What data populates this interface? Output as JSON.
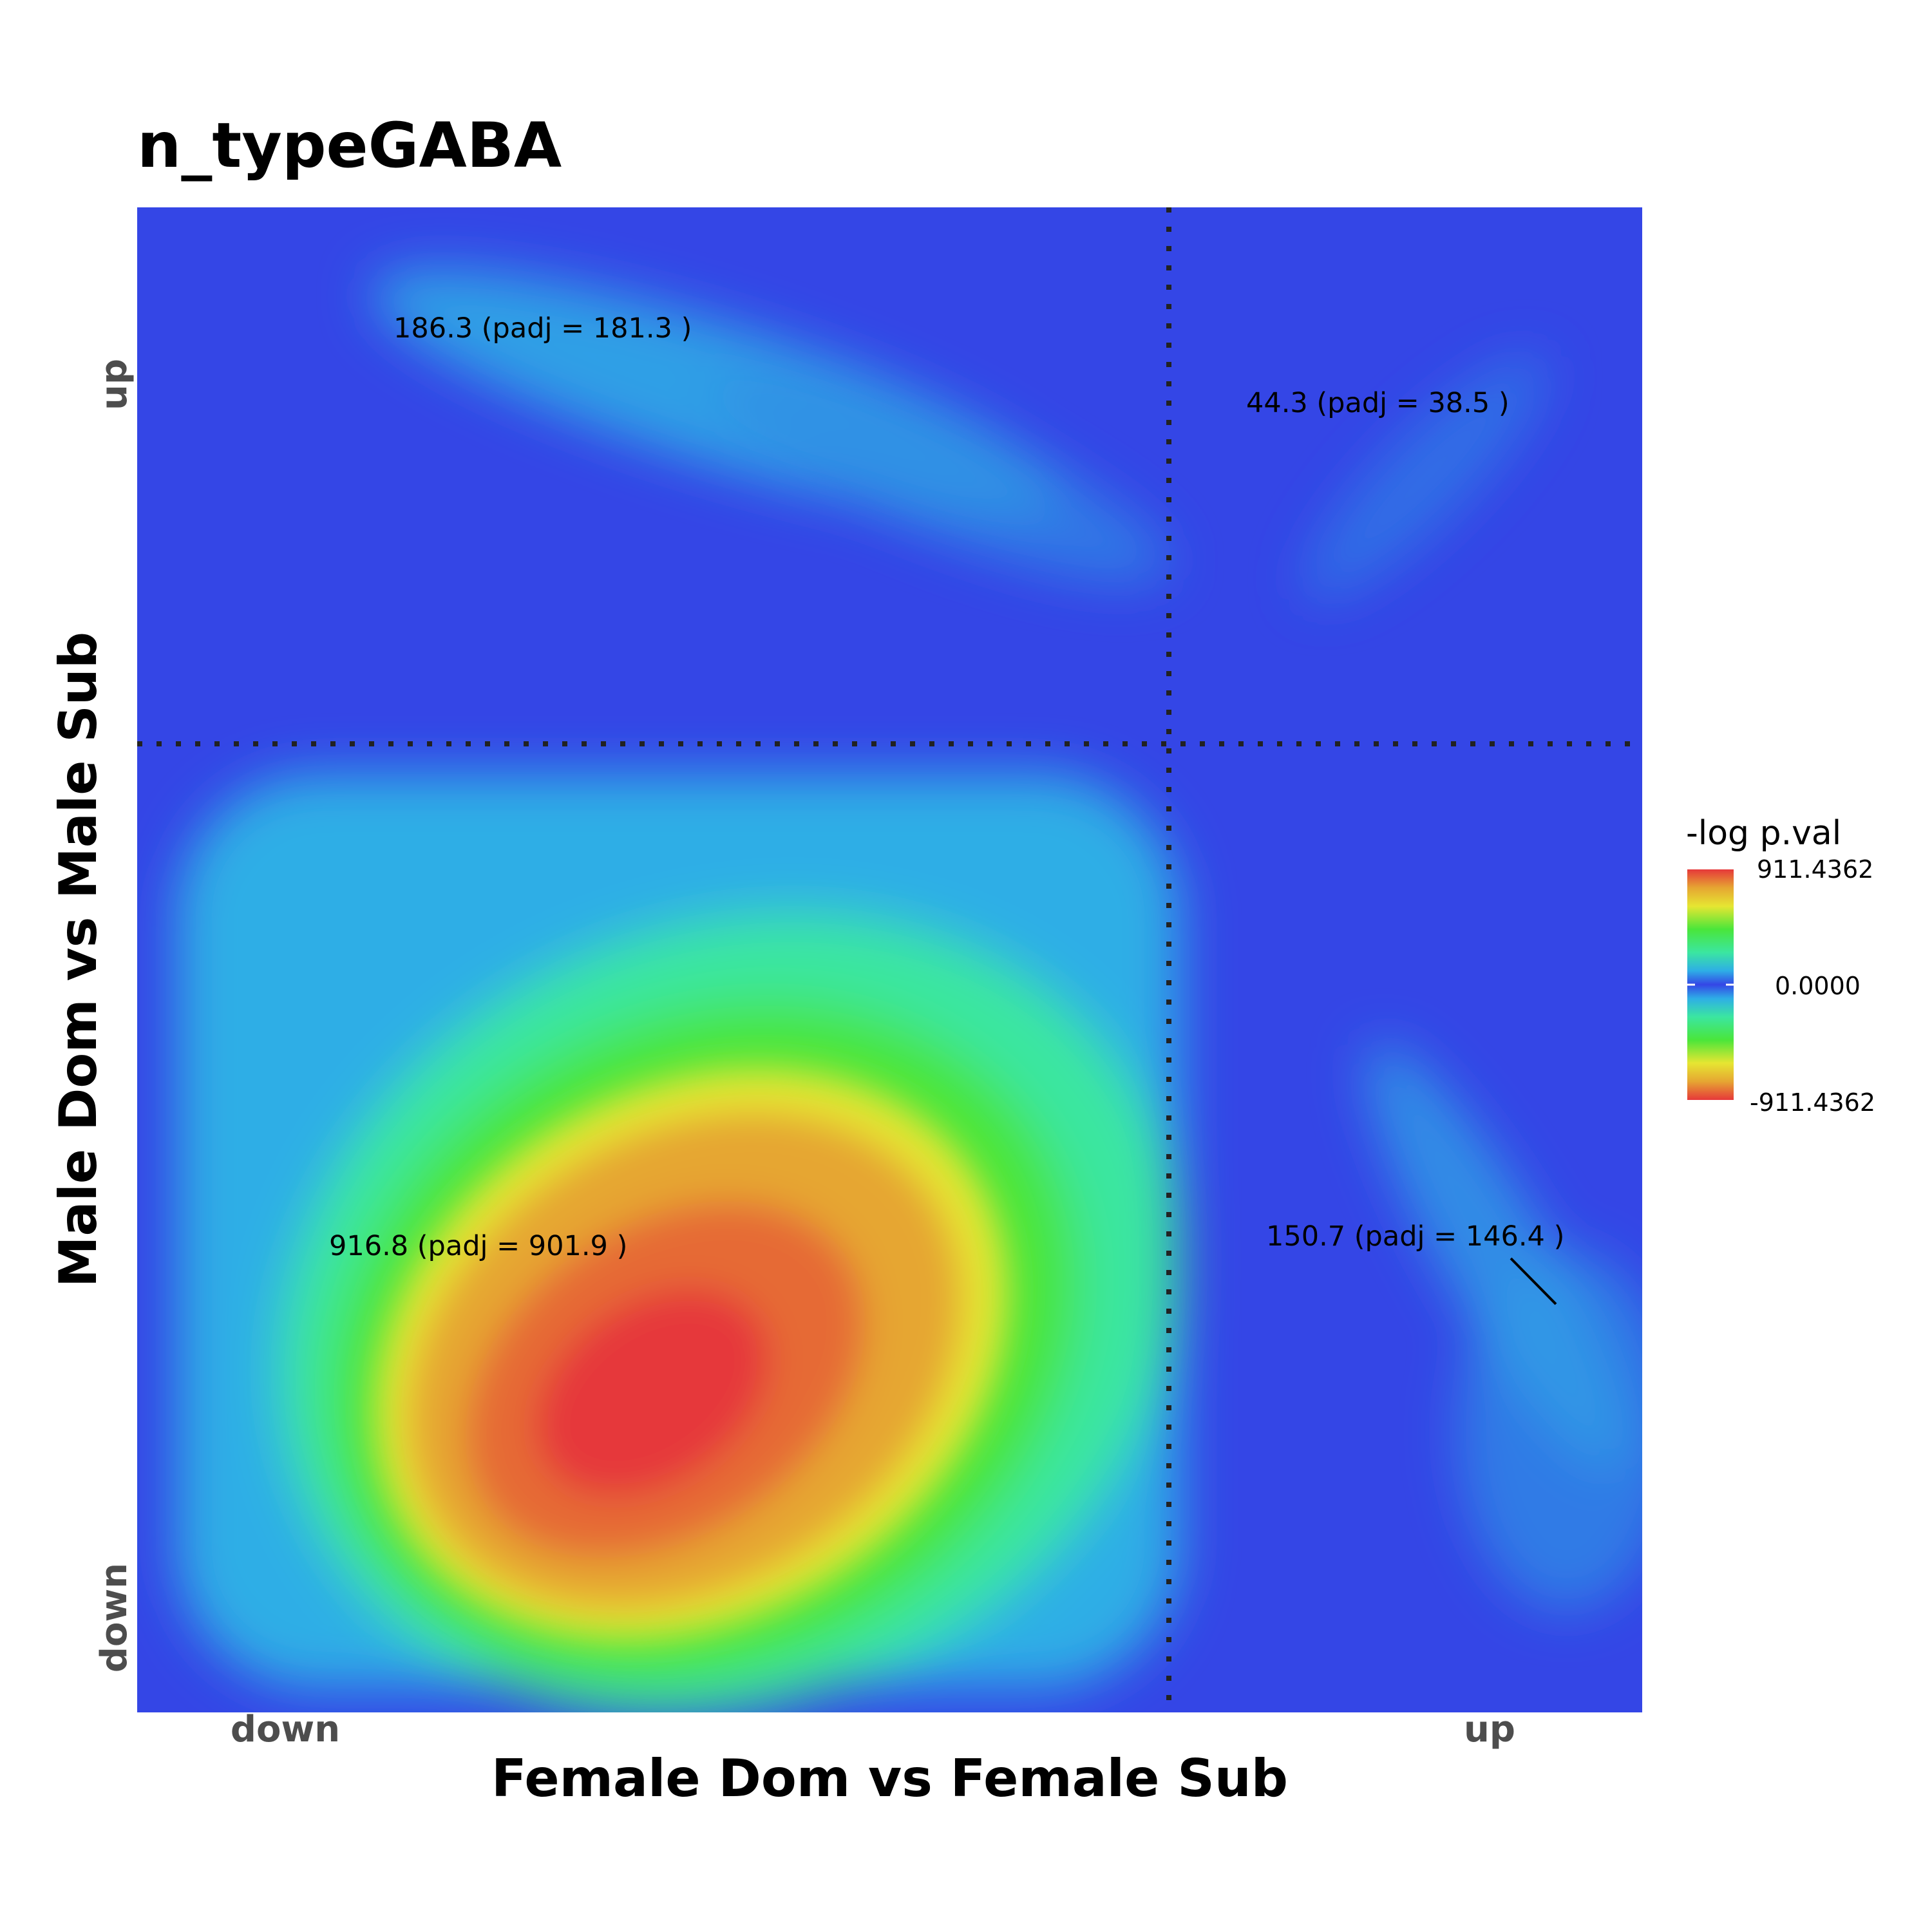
{
  "title": "n_typeGABA",
  "chart_data": {
    "type": "heatmap",
    "title": "n_typeGABA",
    "xlabel": "Female Dom vs Female Sub",
    "ylabel": "Male Dom vs Male Sub",
    "x_ticks": [
      "down",
      "up"
    ],
    "y_ticks": [
      "down",
      "up"
    ],
    "legend": {
      "title": "-log p.val",
      "labels": [
        "911.4362",
        "0.0000",
        "-911.4362"
      ],
      "placement": "right"
    },
    "quadrants": [
      {
        "x": "down",
        "y": "up",
        "label": "186.3 (padj = 181.3 )",
        "value": 186.3,
        "padj": 181.3
      },
      {
        "x": "up",
        "y": "up",
        "label": "44.3 (padj = 38.5 )",
        "value": 44.3,
        "padj": 38.5
      },
      {
        "x": "down",
        "y": "down",
        "label": "916.8 (padj = 901.9 )",
        "value": 916.8,
        "padj": 901.9
      },
      {
        "x": "up",
        "y": "down",
        "label": "150.7 (padj = 146.4 )",
        "value": 150.7,
        "padj": 146.4
      }
    ],
    "colors": {
      "low": "#3446e6",
      "mid": "#2eaee6",
      "midhigh": "#3be67a",
      "high_green": "#4ae63a",
      "yellow": "#e6e632",
      "orange": "#e68e32",
      "red": "#e6383a"
    }
  }
}
